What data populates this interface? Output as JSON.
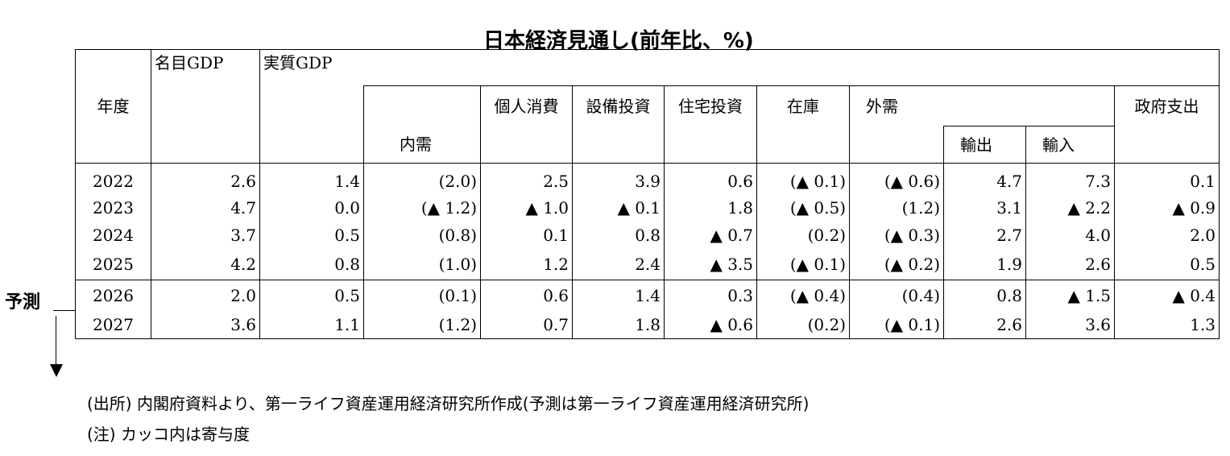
{
  "title": "日本経済見通し(前年比、%)",
  "headers": {
    "year": "年度",
    "nominal_gdp": "名目GDP",
    "real_gdp": "実質GDP",
    "domestic_demand": "内需",
    "private_consumption": "個人消費",
    "capex": "設備投資",
    "housing": "住宅投資",
    "inventory": "在庫",
    "external_demand": "外需",
    "exports": "輸出",
    "imports": "輸入",
    "government": "政府支出"
  },
  "rows": [
    {
      "year": "2022",
      "nominal_gdp": "2.6",
      "real_gdp": "1.4",
      "domestic_demand": "(2.0)",
      "private_consumption": "2.5",
      "capex": "3.9",
      "housing": "0.6",
      "inventory": "(▲ 0.1)",
      "external_demand": "(▲ 0.6)",
      "exports": "4.7",
      "imports": "7.3",
      "government": "0.1"
    },
    {
      "year": "2023",
      "nominal_gdp": "4.7",
      "real_gdp": "0.0",
      "domestic_demand": "(▲ 1.2)",
      "private_consumption": "▲ 1.0",
      "capex": "▲ 0.1",
      "housing": "1.8",
      "inventory": "(▲ 0.5)",
      "external_demand": "(1.2)",
      "exports": "3.1",
      "imports": "▲ 2.2",
      "government": "▲ 0.9"
    },
    {
      "year": "2024",
      "nominal_gdp": "3.7",
      "real_gdp": "0.5",
      "domestic_demand": "(0.8)",
      "private_consumption": "0.1",
      "capex": "0.8",
      "housing": "▲ 0.7",
      "inventory": "(0.2)",
      "external_demand": "(▲ 0.3)",
      "exports": "2.7",
      "imports": "4.0",
      "government": "2.0"
    },
    {
      "year": "2025",
      "nominal_gdp": "4.2",
      "real_gdp": "0.8",
      "domestic_demand": "(1.0)",
      "private_consumption": "1.2",
      "capex": "2.4",
      "housing": "▲ 3.5",
      "inventory": "(▲ 0.1)",
      "external_demand": "(▲ 0.2)",
      "exports": "1.9",
      "imports": "2.6",
      "government": "0.5"
    },
    {
      "year": "2026",
      "nominal_gdp": "2.0",
      "real_gdp": "0.5",
      "domestic_demand": "(0.1)",
      "private_consumption": "0.6",
      "capex": "1.4",
      "housing": "0.3",
      "inventory": "(▲ 0.4)",
      "external_demand": "(0.4)",
      "exports": "0.8",
      "imports": "▲ 1.5",
      "government": "▲ 0.4"
    },
    {
      "year": "2027",
      "nominal_gdp": "3.6",
      "real_gdp": "1.1",
      "domestic_demand": "(1.2)",
      "private_consumption": "0.7",
      "capex": "1.8",
      "housing": "▲ 0.6",
      "inventory": "(0.2)",
      "external_demand": "(▲ 0.1)",
      "exports": "2.6",
      "imports": "3.6",
      "government": "1.3"
    }
  ],
  "forecast_label": "予測",
  "notes": {
    "source": "(出所) 内閣府資料より、第一ライフ資産運用経済研究所作成(予測は第一ライフ資産運用経済研究所)",
    "note": "(注) カッコ内は寄与度"
  }
}
